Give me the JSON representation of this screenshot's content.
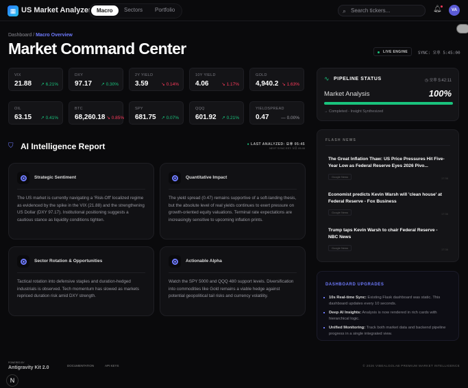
{
  "header": {
    "app_name": "US Market Analyzer",
    "logo_icon": "grid-icon",
    "nav": [
      "Macro",
      "Sectors",
      "Portfolio"
    ],
    "active_nav": "Macro",
    "search_placeholder": "Search tickers...",
    "avatar": "VA"
  },
  "breadcrumb": {
    "root": "Dashboard",
    "current": "Macro Overview"
  },
  "page_title": "Market Command Center",
  "engine": {
    "status": "LIVE ENGINE",
    "sync": "SYNC: 오후 5:45:00"
  },
  "tickers": [
    {
      "label": "VIX",
      "value": "21.88",
      "change": "6.21%",
      "dir": "up"
    },
    {
      "label": "DXY",
      "value": "97.17",
      "change": "0.30%",
      "dir": "up"
    },
    {
      "label": "2Y YIELD",
      "value": "3.59",
      "change": "0.14%",
      "dir": "dn"
    },
    {
      "label": "10Y YIELD",
      "value": "4.06",
      "change": "1.17%",
      "dir": "dn"
    },
    {
      "label": "GOLD",
      "value": "4,940.2",
      "change": "1.63%",
      "dir": "dn"
    },
    {
      "label": "OIL",
      "value": "63.15",
      "change": "0.41%",
      "dir": "up"
    },
    {
      "label": "BTC",
      "value": "68,260.18",
      "change": "0.85%",
      "dir": "dn"
    },
    {
      "label": "SPY",
      "value": "681.75",
      "change": "0.07%",
      "dir": "up"
    },
    {
      "label": "QQQ",
      "value": "601.92",
      "change": "0.21%",
      "dir": "up"
    },
    {
      "label": "YIELDSPREAD",
      "value": "0.47",
      "change": "0.00%",
      "dir": "fl"
    }
  ],
  "pipeline": {
    "title": "PIPELINE STATUS",
    "time": "오후 5:42:11",
    "task": "Market Analysis",
    "percent_label": "100%",
    "progress": 100,
    "status": "→ Completed - Insight Synthesized"
  },
  "report": {
    "title": "AI Intelligence Report",
    "last_analyzed": "LAST ANALYZED: 오후 05:45",
    "next_sync": "NEXT SYNC EST: 오후 05:46",
    "cards": [
      {
        "title": "Strategic Sentiment",
        "text": "The US market is currently navigating a 'Risk-Off' localized regime as evidenced by the spike in the VIX (21.88) and the strengthening US Dollar (DXY 97.17). Institutional positioning suggests a cautious stance as liquidity conditions tighten."
      },
      {
        "title": "Quantitative Impact",
        "text": "The yield spread (0.47) remains supportive of a soft-landing thesis, but the absolute level of real yields continues to exert pressure on growth-oriented equity valuations. Terminal rate expectations are increasingly sensitive to upcoming inflation prints."
      },
      {
        "title": "Sector Rotation & Opportunities",
        "text": "Tactical rotation into defensive staples and duration-hedged industrials is observed. Tech momentum has slowed as markets repriced duration risk amid DXY strength."
      },
      {
        "title": "Actionable Alpha",
        "text": "Watch the SPY 5000 and QQQ 480 support levels. Diversification into commodities like Gold remains a viable hedge against potential geopolitical tail risks and currency volatility."
      }
    ]
  },
  "flash_news": {
    "title": "FLASH NEWS",
    "items": [
      {
        "title": "The Great Inflation Thaw: US Price Pressures Hit Five-Year Low as Federal Reserve Eyes 2026 Pivo...",
        "source": "Google News",
        "time": "17:36"
      },
      {
        "title": "Economist predicts Kevin Warsh will 'clean house' at Federal Reserve - Fox Business",
        "source": "Google News",
        "time": "17:36"
      },
      {
        "title": "Trump taps Kevin Warsh to chair Federal Reserve - NBC News",
        "source": "Google News",
        "time": "17:36"
      }
    ]
  },
  "upgrades": {
    "title": "DASHBOARD UPGRADES",
    "items": [
      {
        "bold": "10s Real-time Sync:",
        "text": " Existing Flask dashboard was static. This dashboard updates every 10 seconds."
      },
      {
        "bold": "Deep AI Insights:",
        "text": " Analysis is now rendered in rich cards with hierarchical logic."
      },
      {
        "bold": "Unified Monitoring:",
        "text": " Track both market data and backend pipeline progress in a single integrated view."
      }
    ]
  },
  "footer": {
    "powered_by": "POWERED BY",
    "kit": "Antigravity Kit 2.0",
    "links": [
      "DOCUMENTATION",
      "API KEYS"
    ],
    "copyright": "© 2026 VIBEALGOLAB PREMIUM MARKET INTELLIGENCE"
  },
  "colors": {
    "accent": "#6f7bff",
    "up": "#19c37d",
    "down": "#ff3b5c",
    "bg": "#0a0a0c"
  }
}
